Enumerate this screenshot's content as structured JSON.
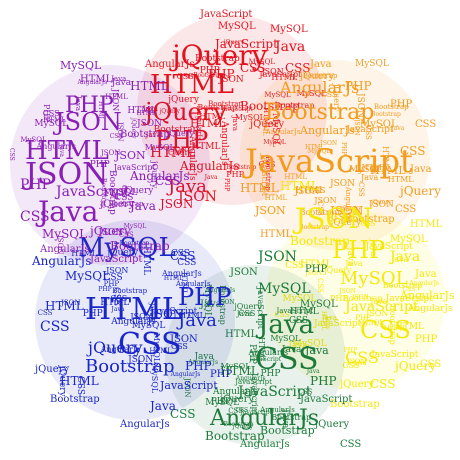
{
  "clusters": [
    {
      "name": "red",
      "color": "#e3121e",
      "words": [
        "jQuery",
        "HTML",
        "jQuery",
        "PHP",
        "Java",
        "JSON",
        "AngularJs",
        "Bootstrap",
        "CSS",
        "MySQL",
        "JavaScript",
        "PHP",
        "HTML",
        "JavaScript",
        "Java",
        "CSS",
        "JSON",
        "jQuery",
        "MySQL",
        "Bootstrap",
        "AngularJs",
        "HTML"
      ]
    },
    {
      "name": "orange",
      "color": "#f39b1c",
      "words": [
        "JavaScript",
        "Bootstrap",
        "AngularJs",
        "HTML",
        "CSS",
        "JSON",
        "jQuery",
        "PHP",
        "MySQL",
        "Java",
        "HTML",
        "CSS",
        "JSON",
        "Bootstrap",
        "PHP",
        "AngularJs",
        "Java",
        "HTML",
        "jQuery",
        "CSS",
        "MySQL",
        "JSON"
      ]
    },
    {
      "name": "yellow",
      "color": "#f5e90a",
      "words": [
        "JSON",
        "PHP",
        "CSS",
        "MySQL",
        "HTML",
        "CSS",
        "JavaScript",
        "Java",
        "jQuery",
        "Bootstrap",
        "AngularJs",
        "HTML",
        "PHP",
        "JSON",
        "CSS",
        "Java",
        "MySQL",
        "jQuery",
        "HTML",
        "Bootstrap",
        "AngularJs",
        "CSS"
      ]
    },
    {
      "name": "green",
      "color": "#1c7a3b",
      "words": [
        "CSS",
        "Java",
        "AngularJs",
        "JavaScript",
        "MySQL",
        "JSON",
        "Bootstrap",
        "PHP",
        "HTML",
        "jQuery",
        "Java",
        "CSS",
        "MySQL",
        "JSON",
        "AngularJs",
        "HTML",
        "Bootstrap",
        "JavaScript",
        "PHP",
        "jQuery",
        "CSS",
        "Java"
      ]
    },
    {
      "name": "blue",
      "color": "#1a26c8",
      "words": [
        "CSS",
        "HTML",
        "PHP",
        "MySQL",
        "Bootstrap",
        "jQuery",
        "Java",
        "AngularJs",
        "CSS",
        "JSON",
        "JavaScript",
        "HTML",
        "PHP",
        "Java",
        "MySQL",
        "jQuery",
        "Bootstrap",
        "CSS",
        "AngularJs",
        "JSON",
        "HTML",
        "PHP"
      ]
    },
    {
      "name": "purple",
      "color": "#8a1fb5",
      "words": [
        "JSON",
        "Java",
        "HTML",
        "PHP",
        "JSON",
        "MySQL",
        "CSS",
        "JavaScript",
        "jQuery",
        "Bootstrap",
        "AngularJs",
        "HTML",
        "PHP",
        "Java",
        "CSS",
        "MySQL",
        "JSON",
        "jQuery",
        "HTML",
        "Bootstrap",
        "AngularJs",
        "JavaScript"
      ]
    }
  ]
}
